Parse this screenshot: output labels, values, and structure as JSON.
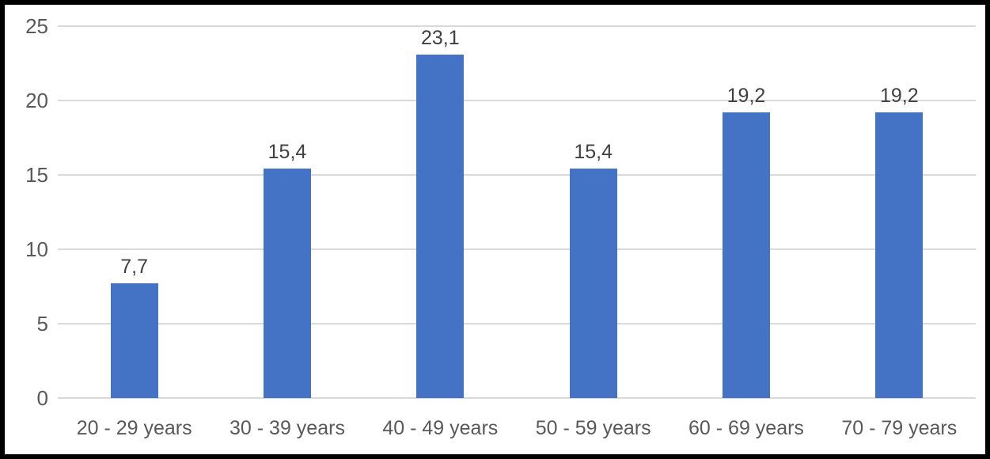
{
  "chart_data": {
    "type": "bar",
    "title": "",
    "xlabel": "",
    "ylabel": "",
    "categories": [
      "20 - 29 years",
      "30 - 39 years",
      "40 - 49 years",
      "50 - 59 years",
      "60 - 69 years",
      "70 - 79 years"
    ],
    "values": [
      7.7,
      15.4,
      23.1,
      15.4,
      19.2,
      19.2
    ],
    "value_labels": [
      "7,7",
      "15,4",
      "23,1",
      "15,4",
      "19,2",
      "19,2"
    ],
    "ylim": [
      0,
      25
    ],
    "yticks": [
      0,
      5,
      10,
      15,
      20,
      25
    ],
    "ytick_labels": [
      "0",
      "5",
      "10",
      "15",
      "20",
      "25"
    ],
    "grid": true,
    "legend": false,
    "colors": {
      "bar": "#4472C4",
      "gridline": "#D9D9D9",
      "axis_label": "#595959",
      "data_label": "#404040",
      "frame_border": "#000000",
      "background": "#FFFFFF"
    }
  }
}
